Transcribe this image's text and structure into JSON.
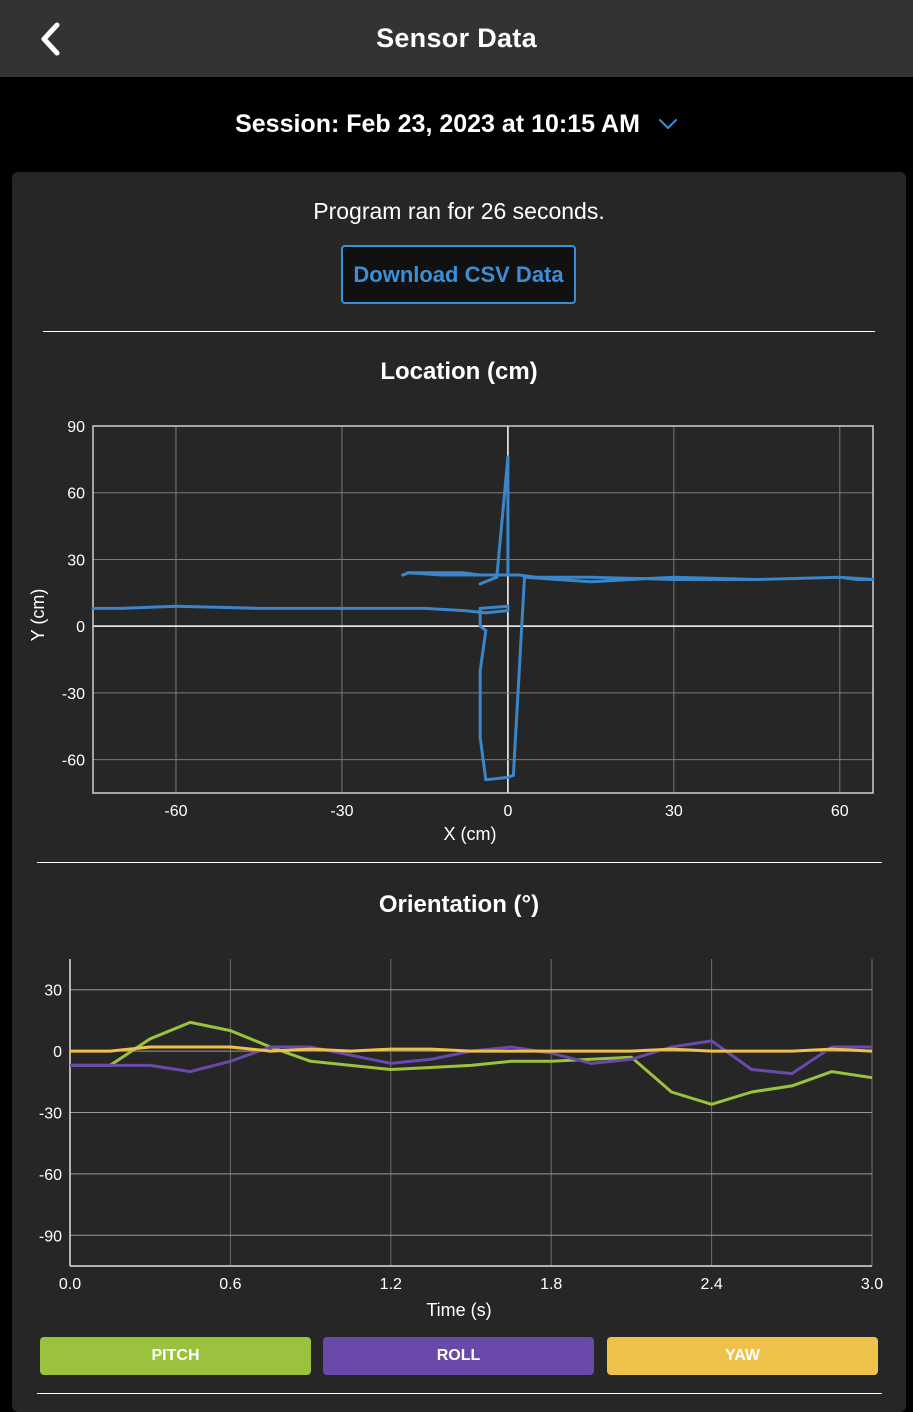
{
  "header": {
    "title": "Sensor Data",
    "back_icon": "chevron-left-icon"
  },
  "session": {
    "label": "Session: Feb 23, 2023 at 10:15 AM",
    "dropdown_icon": "chevron-down-icon"
  },
  "summary": {
    "runtime_text": "Program ran for 26 seconds."
  },
  "download_button": {
    "label": "Download CSV Data"
  },
  "location_chart": {
    "title": "Location (cm)",
    "chart_data": {
      "type": "line",
      "title": "Location (cm)",
      "xlabel": "X (cm)",
      "ylabel": "Y (cm)",
      "xlim": [
        -75,
        66
      ],
      "ylim": [
        -75,
        90
      ],
      "x_ticks": [
        "-60",
        "-30",
        "0",
        "30",
        "60"
      ],
      "y_ticks": [
        "90",
        "60",
        "30",
        "0",
        "-30",
        "-60"
      ],
      "color": "#3a86c8",
      "series": [
        {
          "x": [
            -75,
            -70,
            -60,
            -45,
            -30,
            -15,
            -8,
            -4,
            0,
            0,
            -5,
            -5,
            -5,
            -4,
            -5,
            -5,
            -4,
            0,
            1,
            3,
            15,
            30,
            45,
            60,
            66,
            63,
            60,
            45,
            30,
            15,
            5,
            2,
            0,
            -8,
            -12,
            -18,
            -19,
            -18,
            -8,
            -5,
            0,
            0,
            0,
            0,
            -2,
            -5
          ],
          "y": [
            8,
            8,
            9,
            8,
            8,
            8,
            7,
            6,
            7,
            9,
            8,
            5,
            0,
            -2,
            -20,
            -50,
            -69,
            -68,
            -67,
            22,
            20,
            22,
            21,
            22,
            21,
            21,
            22,
            21,
            21,
            22,
            22,
            23,
            23,
            23,
            23,
            24,
            23,
            24,
            24,
            23,
            23,
            25,
            45,
            76,
            22,
            19
          ]
        }
      ]
    }
  },
  "orientation_chart": {
    "title": "Orientation (°)",
    "chart_data": {
      "type": "line",
      "title": "Orientation (°)",
      "xlabel": "Time (s)",
      "ylabel": "",
      "xlim": [
        0,
        3.0
      ],
      "ylim": [
        -105,
        45
      ],
      "x_ticks": [
        "0.0",
        "0.6",
        "1.2",
        "1.8",
        "2.4",
        "3.0"
      ],
      "y_ticks": [
        "30",
        "0",
        "-30",
        "-60",
        "-90"
      ],
      "x": [
        0,
        0.15,
        0.3,
        0.45,
        0.6,
        0.75,
        0.9,
        1.05,
        1.2,
        1.35,
        1.5,
        1.65,
        1.8,
        1.95,
        2.1,
        2.25,
        2.4,
        2.55,
        2.7,
        2.85,
        3.0
      ],
      "series": [
        {
          "name": "PITCH",
          "color": "#9bc23c",
          "values": [
            -7,
            -7,
            6,
            14,
            10,
            2,
            -5,
            -7,
            -9,
            -8,
            -7,
            -5,
            -5,
            -4,
            -3,
            -20,
            -26,
            -20,
            -17,
            -10,
            -13
          ]
        },
        {
          "name": "ROLL",
          "color": "#6a4aa8",
          "values": [
            -7,
            -7,
            -7,
            -10,
            -5,
            2,
            2,
            -2,
            -6,
            -4,
            0,
            2,
            -1,
            -6,
            -4,
            2,
            5,
            -9,
            -11,
            2,
            2
          ]
        },
        {
          "name": "YAW",
          "color": "#eec24a",
          "values": [
            0,
            0,
            2,
            2,
            2,
            0,
            1,
            0,
            1,
            1,
            0,
            0,
            0,
            0,
            0,
            1,
            0,
            0,
            0,
            1,
            0
          ]
        }
      ]
    }
  },
  "legend": [
    {
      "label": "PITCH",
      "color": "#9bc23c"
    },
    {
      "label": "ROLL",
      "color": "#6a4aa8"
    },
    {
      "label": "YAW",
      "color": "#eec24a"
    }
  ]
}
